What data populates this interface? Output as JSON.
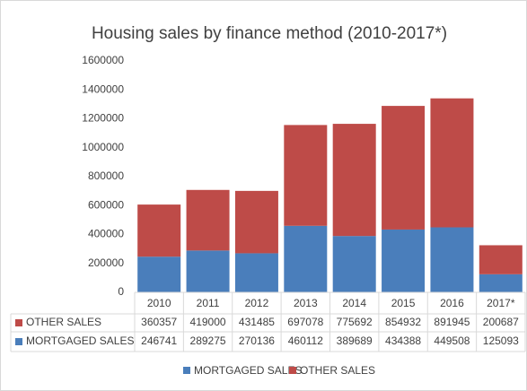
{
  "chart_data": {
    "type": "stacked_bar",
    "title": "Housing sales by finance method (2010-2017*)",
    "categories": [
      "2010",
      "2011",
      "2012",
      "2013",
      "2014",
      "2015",
      "2016",
      "2017*"
    ],
    "series": [
      {
        "name": "MORTGAGED SALES",
        "color": "#4a7ebb",
        "values": [
          246741,
          289275,
          270136,
          460112,
          389689,
          434388,
          449508,
          125093
        ]
      },
      {
        "name": "OTHER SALES",
        "color": "#be4b48",
        "values": [
          360357,
          419000,
          431485,
          697078,
          775692,
          854932,
          891945,
          200687
        ]
      }
    ],
    "ylim": [
      0,
      1600000
    ],
    "yticks": [
      0,
      200000,
      400000,
      600000,
      800000,
      1000000,
      1200000,
      1400000,
      1600000
    ],
    "data_table": true,
    "legend": "bottom"
  }
}
